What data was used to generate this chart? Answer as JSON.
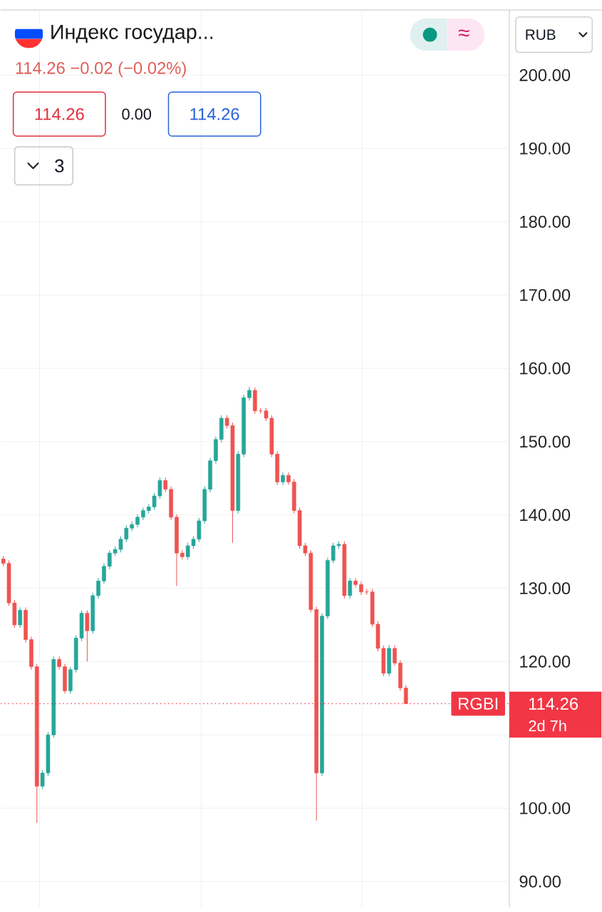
{
  "chart_data": {
    "type": "candlestick",
    "title": "Индекс государ...",
    "categories": [
      null,
      null,
      null,
      null,
      null,
      null,
      null,
      null,
      null,
      null,
      null,
      null,
      null,
      null,
      null,
      null,
      null,
      null,
      null,
      null,
      null,
      null,
      null,
      null,
      null,
      null,
      null,
      null,
      null,
      null,
      null,
      null,
      null,
      null,
      null,
      null,
      null,
      null,
      null,
      null,
      null,
      null,
      null,
      null,
      null,
      null,
      null,
      null,
      null,
      null,
      null,
      null,
      null,
      null,
      null,
      null,
      null,
      null,
      null,
      null,
      null,
      null,
      null,
      null,
      null,
      null,
      null,
      null,
      null,
      null,
      null,
      null,
      null,
      null,
      null,
      null,
      null,
      null,
      null,
      null,
      null,
      null,
      null,
      null,
      null,
      null,
      null,
      null,
      null,
      null,
      null
    ],
    "ohlc": [
      [
        134.0,
        134.4,
        133.0,
        133.4
      ],
      [
        133.4,
        133.8,
        127.6,
        128
      ],
      [
        128,
        128.4,
        124.6,
        125
      ],
      [
        125,
        127.4,
        124.6,
        127
      ],
      [
        127,
        127.4,
        122.6,
        123
      ],
      [
        123,
        123.4,
        118.9,
        119.3
      ],
      [
        119.3,
        119.7,
        98,
        103
      ],
      [
        103,
        105.2,
        102.6,
        104.8
      ],
      [
        104.8,
        110.4,
        104.4,
        110
      ],
      [
        110,
        120.7,
        109.6,
        120.3
      ],
      [
        120.3,
        120.7,
        118.9,
        119.3
      ],
      [
        119.3,
        119.7,
        115.6,
        116
      ],
      [
        116,
        119.3,
        115.6,
        118.9
      ],
      [
        118.9,
        123.6,
        118.5,
        123.2
      ],
      [
        123.2,
        127,
        122.8,
        126.6
      ],
      [
        126.6,
        127,
        120,
        124.2
      ],
      [
        124.2,
        129.4,
        123.8,
        129
      ],
      [
        129,
        131.4,
        128.6,
        131
      ],
      [
        131,
        133.4,
        130.6,
        133
      ],
      [
        133,
        135.2,
        132.6,
        134.8
      ],
      [
        134.8,
        135.7,
        134.4,
        135.3
      ],
      [
        135.3,
        137.1,
        134.9,
        136.7
      ],
      [
        136.7,
        138.6,
        136.3,
        138.2
      ],
      [
        138.2,
        139.1,
        137.8,
        138.7
      ],
      [
        138.7,
        140.1,
        138.3,
        139.7
      ],
      [
        139.7,
        141,
        139.3,
        140.6
      ],
      [
        140.6,
        141.5,
        140.2,
        141.1
      ],
      [
        141.1,
        143,
        140.7,
        142.6
      ],
      [
        142.6,
        145.1,
        142.2,
        144.7
      ],
      [
        144.7,
        145.1,
        143.1,
        143.5
      ],
      [
        143.5,
        143.9,
        139.3,
        139.7
      ],
      [
        139.7,
        140.1,
        130.3,
        134.8
      ],
      [
        134.8,
        135.2,
        133.9,
        134.3
      ],
      [
        134.3,
        136.2,
        133.9,
        135.8
      ],
      [
        135.8,
        137.1,
        135.4,
        136.7
      ],
      [
        136.7,
        139.6,
        136.3,
        139.2
      ],
      [
        139.2,
        143.9,
        138.8,
        143.5
      ],
      [
        143.5,
        147.8,
        143.1,
        147.4
      ],
      [
        147.4,
        150.7,
        147,
        150.3
      ],
      [
        150.3,
        153.6,
        149.9,
        153.2
      ],
      [
        153.2,
        153.6,
        151.8,
        152.2
      ],
      [
        152.2,
        152.6,
        136.2,
        140.6
      ],
      [
        140.6,
        148.7,
        140.2,
        148.3
      ],
      [
        148.3,
        156.4,
        147.9,
        156
      ],
      [
        156,
        157.5,
        155.6,
        157
      ],
      [
        157,
        157.4,
        153.8,
        154.2
      ],
      [
        154.2,
        154.6,
        153.8,
        154.2
      ],
      [
        154.2,
        154.6,
        152.8,
        153.2
      ],
      [
        153.2,
        153.6,
        147.9,
        148.3
      ],
      [
        148.3,
        148.7,
        144.1,
        144.5
      ],
      [
        144.5,
        145.8,
        144.1,
        145.4
      ],
      [
        145.4,
        145.8,
        144.1,
        144.5
      ],
      [
        144.5,
        144.9,
        140.2,
        140.6
      ],
      [
        140.6,
        141,
        135.4,
        135.8
      ],
      [
        135.8,
        136.2,
        134.4,
        134.8
      ],
      [
        134.8,
        135.2,
        126.7,
        127.1
      ],
      [
        127.1,
        127.5,
        98.3,
        104.8
      ],
      [
        104.8,
        126.6,
        104.4,
        126.2
      ],
      [
        126.2,
        134.2,
        125.8,
        133.8
      ],
      [
        133.8,
        136.2,
        133.4,
        135.8
      ],
      [
        135.8,
        136.4,
        135.4,
        136
      ],
      [
        136,
        136.4,
        128.6,
        129
      ],
      [
        129,
        131.4,
        128.6,
        131
      ],
      [
        131,
        131.4,
        130.1,
        130.5
      ],
      [
        130.5,
        130.9,
        129.1,
        129.5
      ],
      [
        129.5,
        129.9,
        129.1,
        129.5
      ],
      [
        129.5,
        129.9,
        124.7,
        125.1
      ],
      [
        125.1,
        125.5,
        121.4,
        121.8
      ],
      [
        121.8,
        122.2,
        118,
        118.4
      ],
      [
        118.4,
        122.2,
        118,
        121.8
      ],
      [
        121.8,
        122.2,
        119.4,
        119.8
      ],
      [
        119.8,
        120.2,
        116,
        116.4
      ],
      [
        116.4,
        116.8,
        114.26,
        114.26
      ],
      null,
      null,
      null,
      null,
      null,
      null,
      null,
      null,
      null,
      null,
      null,
      null,
      null,
      null,
      null,
      null,
      null,
      null
    ],
    "colors": [
      "#ef5350",
      "#ef5350",
      "#ef5350",
      "#26a69a",
      "#ef5350",
      "#ef5350",
      "#ef5350",
      "#26a69a",
      "#26a69a",
      "#26a69a",
      "#ef5350",
      "#ef5350",
      "#26a69a",
      "#26a69a",
      "#26a69a",
      "#ef5350",
      "#26a69a",
      "#26a69a",
      "#26a69a",
      "#26a69a",
      "#26a69a",
      "#26a69a",
      "#26a69a",
      "#26a69a",
      "#26a69a",
      "#26a69a",
      "#26a69a",
      "#26a69a",
      "#26a69a",
      "#ef5350",
      "#ef5350",
      "#ef5350",
      "#ef5350",
      "#26a69a",
      "#26a69a",
      "#26a69a",
      "#26a69a",
      "#26a69a",
      "#26a69a",
      "#26a69a",
      "#ef5350",
      "#ef5350",
      "#26a69a",
      "#26a69a",
      "#26a69a",
      "#ef5350",
      "#ef5350",
      "#ef5350",
      "#ef5350",
      "#ef5350",
      "#26a69a",
      "#ef5350",
      "#ef5350",
      "#ef5350",
      "#ef5350",
      "#ef5350",
      "#ef5350",
      "#26a69a",
      "#26a69a",
      "#26a69a",
      "#26a69a",
      "#ef5350",
      "#26a69a",
      "#ef5350",
      "#ef5350",
      "#ef5350",
      "#ef5350",
      "#ef5350",
      "#ef5350",
      "#26a69a",
      "#ef5350",
      "#ef5350",
      "#ef5350",
      null,
      null,
      null,
      null,
      null,
      null,
      null,
      null,
      null,
      null,
      null,
      null,
      null,
      null,
      null,
      null,
      null,
      null
    ],
    "ylim": [
      86.5,
      208.8
    ],
    "yticks": [
      {
        "value": 90,
        "label": "90.00"
      },
      {
        "value": 100,
        "label": "100.00"
      },
      {
        "value": 110,
        "label": null
      },
      {
        "value": 120,
        "label": "120.00"
      },
      {
        "value": 130,
        "label": "130.00"
      },
      {
        "value": 140,
        "label": "140.00"
      },
      {
        "value": 150,
        "label": "150.00"
      },
      {
        "value": 160,
        "label": "160.00"
      },
      {
        "value": 170,
        "label": "170.00"
      },
      {
        "value": 180,
        "label": "180.00"
      },
      {
        "value": 190,
        "label": "190.00"
      },
      {
        "value": 200,
        "label": "200.00"
      }
    ],
    "grid": true,
    "tick_labels": "y",
    "ref_lines": [
      {
        "axis": "y",
        "value": 114.26,
        "label": "RGBI",
        "color": "#f23645",
        "line_style": "dotted"
      }
    ],
    "annotations": [
      "114.26  −0.02 (−0.02%)",
      "114.26",
      "0.00",
      "114.26",
      "3",
      "RUB",
      "≈",
      "114.26",
      "2d 7h"
    ]
  }
}
